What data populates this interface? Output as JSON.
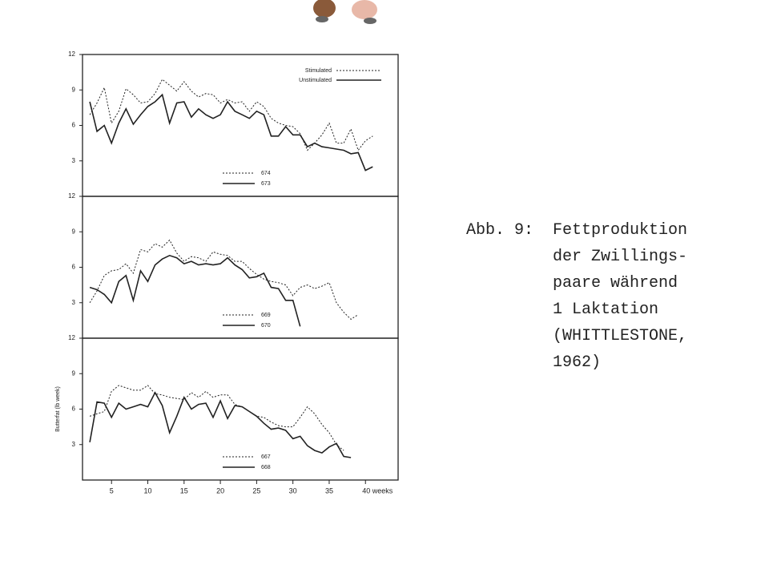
{
  "chart_data": [
    {
      "type": "line",
      "ylim": [
        0,
        12
      ],
      "yticks": [
        3,
        6,
        9,
        12
      ],
      "xlim": [
        1,
        44.5
      ],
      "key": [
        {
          "label": "Stimulated",
          "dash": true
        },
        {
          "label": "Unstimulated",
          "dash": false
        }
      ],
      "x": [
        2,
        3,
        4,
        5,
        6,
        7,
        8,
        9,
        10,
        11,
        12,
        13,
        14,
        15,
        16,
        17,
        18,
        19,
        20,
        21,
        22,
        23,
        24,
        25,
        26,
        27,
        28,
        29,
        30,
        31,
        32,
        33,
        34,
        35,
        36,
        37,
        38,
        39,
        40,
        41
      ],
      "series": [
        {
          "name": "674",
          "color": "#222",
          "dash": true,
          "values": [
            6.9,
            7.9,
            9.2,
            6.2,
            7.2,
            9.1,
            8.6,
            7.9,
            8.0,
            8.7,
            9.9,
            9.4,
            8.9,
            9.7,
            8.9,
            8.4,
            8.7,
            8.6,
            7.9,
            8.2,
            7.9,
            8.0,
            7.2,
            8.0,
            7.6,
            6.6,
            6.2,
            6.0,
            5.9,
            5.3,
            3.9,
            4.5,
            5.2,
            6.2,
            4.5,
            4.5,
            5.7,
            3.9,
            4.7,
            5.1
          ]
        },
        {
          "name": "673",
          "color": "#222",
          "dash": false,
          "values": [
            8.0,
            5.5,
            6.0,
            4.5,
            6.2,
            7.4,
            6.1,
            6.9,
            7.6,
            8.0,
            8.6,
            6.2,
            7.9,
            8.0,
            6.7,
            7.4,
            6.9,
            6.6,
            6.9,
            8.0,
            7.2,
            6.9,
            6.6,
            7.2,
            6.9,
            5.1,
            5.1,
            5.9,
            5.2,
            5.2,
            4.2,
            4.5,
            4.2,
            4.1,
            4.0,
            3.9,
            3.6,
            3.7,
            2.2,
            2.5
          ]
        }
      ]
    },
    {
      "type": "line",
      "ylim": [
        0,
        12
      ],
      "yticks": [
        3,
        6,
        9,
        12
      ],
      "xlim": [
        1,
        44.5
      ],
      "x": [
        2,
        3,
        4,
        5,
        6,
        7,
        8,
        9,
        10,
        11,
        12,
        13,
        14,
        15,
        16,
        17,
        18,
        19,
        20,
        21,
        22,
        23,
        24,
        25,
        26,
        27,
        28,
        29,
        30,
        31,
        32,
        33,
        34,
        35,
        36,
        37,
        38,
        39
      ],
      "series": [
        {
          "name": "669",
          "color": "#222",
          "dash": true,
          "values": [
            3.0,
            4.0,
            5.3,
            5.7,
            5.8,
            6.3,
            5.5,
            7.5,
            7.3,
            8.0,
            7.7,
            8.3,
            7.2,
            6.5,
            6.9,
            6.8,
            6.5,
            7.3,
            7.1,
            7.0,
            6.5,
            6.5,
            5.9,
            5.4,
            5.0,
            4.8,
            4.7,
            4.5,
            3.6,
            4.3,
            4.5,
            4.2,
            4.4,
            4.7,
            3.0,
            2.2,
            1.6,
            2.0
          ]
        },
        {
          "name": "670",
          "color": "#222",
          "dash": false,
          "values": [
            4.3,
            4.1,
            3.7,
            3.0,
            4.8,
            5.3,
            3.2,
            5.7,
            4.8,
            6.2,
            6.7,
            7.0,
            6.8,
            6.3,
            6.5,
            6.2,
            6.3,
            6.2,
            6.3,
            6.8,
            6.2,
            5.8,
            5.1,
            5.2,
            5.5,
            4.3,
            4.2,
            3.2,
            3.2,
            1.0,
            null,
            null,
            null,
            null,
            null,
            null,
            null,
            null
          ]
        }
      ]
    },
    {
      "type": "line",
      "ylim": [
        0,
        12
      ],
      "yticks": [
        3,
        6,
        9,
        12
      ],
      "xlim": [
        1,
        44.5
      ],
      "xticks": [
        5,
        10,
        15,
        20,
        25,
        30,
        35,
        {
          "value": 40,
          "label": "40 weeks"
        }
      ],
      "y_label": "Butterfat (lb week)",
      "x": [
        2,
        3,
        4,
        5,
        6,
        7,
        8,
        9,
        10,
        11,
        12,
        13,
        14,
        15,
        16,
        17,
        18,
        19,
        20,
        21,
        22,
        23,
        24,
        25,
        26,
        27,
        28,
        29,
        30,
        31,
        32,
        33,
        34,
        35,
        36,
        37,
        38
      ],
      "series": [
        {
          "name": "667",
          "color": "#222",
          "dash": true,
          "values": [
            5.4,
            5.6,
            5.8,
            7.5,
            8.0,
            7.8,
            7.6,
            7.6,
            8.0,
            7.3,
            7.2,
            7.0,
            6.9,
            6.8,
            7.4,
            7.0,
            7.5,
            7.0,
            7.2,
            7.2,
            6.4,
            6.2,
            5.8,
            5.4,
            5.3,
            4.9,
            4.6,
            4.5,
            4.5,
            5.3,
            6.2,
            5.6,
            4.7,
            4.0,
            3.0,
            2.5,
            null
          ]
        },
        {
          "name": "668",
          "color": "#222",
          "dash": false,
          "values": [
            3.2,
            6.6,
            6.5,
            5.3,
            6.5,
            6.0,
            6.2,
            6.4,
            6.2,
            7.4,
            6.3,
            4.0,
            5.4,
            7.0,
            6.0,
            6.4,
            6.5,
            5.3,
            6.7,
            5.2,
            6.3,
            6.2,
            5.8,
            5.4,
            4.8,
            4.3,
            4.4,
            4.2,
            3.5,
            3.7,
            2.9,
            2.5,
            2.3,
            2.8,
            3.1,
            2.0,
            1.9
          ]
        }
      ]
    }
  ],
  "caption": {
    "lead": "Abb. 9:",
    "lines": [
      "Fettproduktion",
      "der Zwillings-",
      "paare während",
      "1 Laktation",
      "(WHITTLESTONE,",
      "1962)"
    ]
  }
}
